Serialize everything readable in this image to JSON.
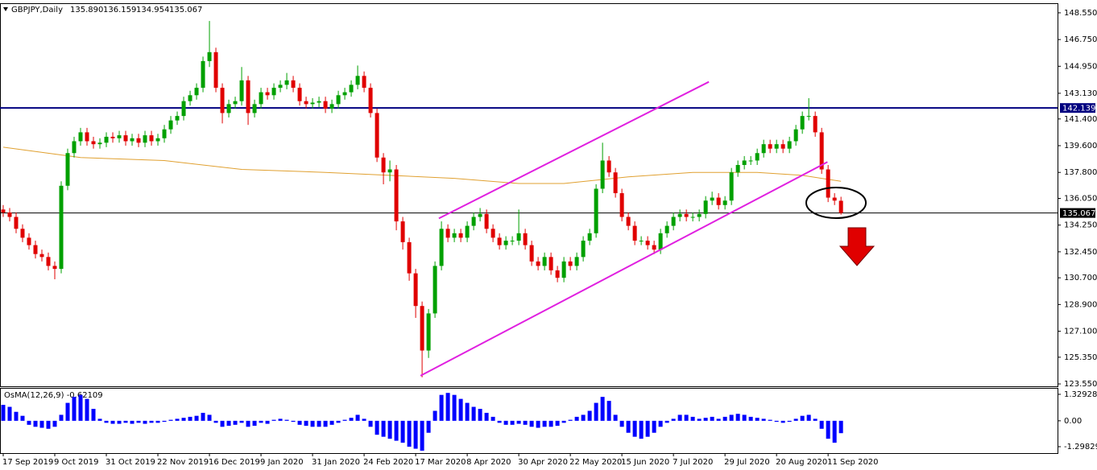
{
  "chart_data": [
    {
      "type": "candlestick",
      "title": "GBPJPY,Daily",
      "header_values": [
        "135.890",
        "136.159",
        "134.954",
        "135.067"
      ],
      "open": [
        135.3,
        135.1,
        134.8,
        134.0,
        133.4,
        132.9,
        132.3,
        132.1,
        131.5,
        131.3,
        136.9,
        139.1,
        139.9,
        140.5,
        139.9,
        139.7,
        139.8,
        140.2,
        140.1,
        140.3,
        139.9,
        140.1,
        139.8,
        140.3,
        139.9,
        140.1,
        140.7,
        141.3,
        141.6,
        142.6,
        143.0,
        143.5,
        145.3,
        145.9,
        143.5,
        141.8,
        142.4,
        142.6,
        144.0,
        141.8,
        142.4,
        143.2,
        143.0,
        143.5,
        143.7,
        144.0,
        143.5,
        142.6,
        142.4,
        142.5,
        142.6,
        142.1,
        142.4,
        143.0,
        143.2,
        143.7,
        144.3,
        143.5,
        141.8,
        138.8,
        137.8,
        138.0,
        134.5,
        133.1,
        131.0,
        128.8,
        125.8,
        128.3,
        131.5,
        134.0,
        133.4,
        133.7,
        133.4,
        134.2,
        134.8,
        135.0,
        134.0,
        133.4,
        132.9,
        133.2,
        133.2,
        133.7,
        132.9,
        131.8,
        131.5,
        132.1,
        131.2,
        130.7,
        131.8,
        131.5,
        132.1,
        133.2,
        133.7,
        136.7,
        138.6,
        137.8,
        136.4,
        134.8,
        134.2,
        133.2,
        133.2,
        132.9,
        132.6,
        133.7,
        134.2,
        134.8,
        135.0,
        134.8,
        134.8,
        135.0,
        135.9,
        136.1,
        135.6,
        135.9,
        137.8,
        138.3,
        138.6,
        138.6,
        139.1,
        139.7,
        139.4,
        139.7,
        139.4,
        139.9,
        140.7,
        141.6,
        141.6,
        140.5,
        138.0,
        136.1,
        135.89
      ],
      "high": [
        135.6,
        135.4,
        135.1,
        134.3,
        133.7,
        133.2,
        132.6,
        132.4,
        131.8,
        137.2,
        139.4,
        140.2,
        140.8,
        140.8,
        140.2,
        140.1,
        140.5,
        140.5,
        140.6,
        140.6,
        140.4,
        140.4,
        140.6,
        140.6,
        140.4,
        141.0,
        141.6,
        141.9,
        142.9,
        143.3,
        143.8,
        145.6,
        148.0,
        146.2,
        143.8,
        142.7,
        142.9,
        144.9,
        144.3,
        142.7,
        143.5,
        143.5,
        143.8,
        144.0,
        144.5,
        144.3,
        143.8,
        142.9,
        142.8,
        142.9,
        142.9,
        142.7,
        143.3,
        143.5,
        144.0,
        145.0,
        144.6,
        143.8,
        142.1,
        139.1,
        138.6,
        138.3,
        134.8,
        133.4,
        131.3,
        129.1,
        128.6,
        131.8,
        134.5,
        134.3,
        134.0,
        134.0,
        134.5,
        135.1,
        135.4,
        135.3,
        134.3,
        133.7,
        133.5,
        133.5,
        135.3,
        134.0,
        133.2,
        132.1,
        132.4,
        132.4,
        131.5,
        132.1,
        132.1,
        132.4,
        133.5,
        134.0,
        137.0,
        139.8,
        138.9,
        138.1,
        136.7,
        135.1,
        134.5,
        133.5,
        133.5,
        133.2,
        134.0,
        134.5,
        135.1,
        135.3,
        135.3,
        135.1,
        135.3,
        136.2,
        136.5,
        136.4,
        136.2,
        138.1,
        138.6,
        138.9,
        138.9,
        139.4,
        140.0,
        140.0,
        140.0,
        140.0,
        140.2,
        141.0,
        141.9,
        142.8,
        141.9,
        140.8,
        138.3,
        136.4,
        136.159
      ],
      "low": [
        134.8,
        134.5,
        133.7,
        133.1,
        132.6,
        132.0,
        131.8,
        131.2,
        130.6,
        131.0,
        136.6,
        138.8,
        139.6,
        139.6,
        139.4,
        139.4,
        139.5,
        139.8,
        139.8,
        139.6,
        139.6,
        139.5,
        139.5,
        139.6,
        139.6,
        139.8,
        140.4,
        141.0,
        141.3,
        142.3,
        142.7,
        143.2,
        144.9,
        143.2,
        141.1,
        141.5,
        142.1,
        142.3,
        141.0,
        141.5,
        142.1,
        142.7,
        142.7,
        143.2,
        143.4,
        143.2,
        142.3,
        142.1,
        142.1,
        142.2,
        141.8,
        141.8,
        142.1,
        142.7,
        142.9,
        143.4,
        143.2,
        141.5,
        138.5,
        137.0,
        137.2,
        133.9,
        132.6,
        130.5,
        128.0,
        124.0,
        125.3,
        128.0,
        131.2,
        133.1,
        133.1,
        133.1,
        133.1,
        133.9,
        134.5,
        133.7,
        133.1,
        132.6,
        132.6,
        132.9,
        132.9,
        132.6,
        131.5,
        131.2,
        131.2,
        130.9,
        130.4,
        130.4,
        131.2,
        131.2,
        131.8,
        132.9,
        133.4,
        136.4,
        137.5,
        136.1,
        134.5,
        133.9,
        132.9,
        132.9,
        132.6,
        132.3,
        132.3,
        133.4,
        133.9,
        134.5,
        134.5,
        134.5,
        134.5,
        134.7,
        135.6,
        135.3,
        135.3,
        135.6,
        137.5,
        138.0,
        138.3,
        138.3,
        138.8,
        139.1,
        139.1,
        139.1,
        139.1,
        139.6,
        140.4,
        141.3,
        140.2,
        137.7,
        135.8,
        135.6,
        134.954
      ],
      "close": [
        135.1,
        134.8,
        134.0,
        133.4,
        132.9,
        132.3,
        132.1,
        131.5,
        131.3,
        136.9,
        139.1,
        139.9,
        140.5,
        139.9,
        139.7,
        139.8,
        140.2,
        140.1,
        140.3,
        139.9,
        140.1,
        139.8,
        140.3,
        139.9,
        140.1,
        140.7,
        141.3,
        141.6,
        142.6,
        143.0,
        143.5,
        145.3,
        145.9,
        143.5,
        141.8,
        142.4,
        142.6,
        144.0,
        141.8,
        142.4,
        143.2,
        143.0,
        143.5,
        143.7,
        144.0,
        143.5,
        142.6,
        142.4,
        142.5,
        142.6,
        142.1,
        142.4,
        143.0,
        143.2,
        143.7,
        144.3,
        143.5,
        141.8,
        138.8,
        137.8,
        138.0,
        134.5,
        133.1,
        131.0,
        128.8,
        125.8,
        128.3,
        131.5,
        134.0,
        133.4,
        133.7,
        133.4,
        134.2,
        134.8,
        135.0,
        134.0,
        133.4,
        132.9,
        133.2,
        133.2,
        133.7,
        132.9,
        131.8,
        131.5,
        132.1,
        131.2,
        130.7,
        131.8,
        131.5,
        132.1,
        133.2,
        133.7,
        136.7,
        138.6,
        137.8,
        136.4,
        134.8,
        134.2,
        133.2,
        133.2,
        132.9,
        132.6,
        133.7,
        134.2,
        134.8,
        135.0,
        134.8,
        134.8,
        135.0,
        135.9,
        136.1,
        135.6,
        135.9,
        137.8,
        138.3,
        138.6,
        138.6,
        139.1,
        139.7,
        139.4,
        139.7,
        139.4,
        139.9,
        140.7,
        141.6,
        141.6,
        140.5,
        138.0,
        136.1,
        135.9,
        135.067
      ],
      "up_color": "#00a000",
      "down_color": "#e00000",
      "xlim": [
        -0.5,
        163.6
      ],
      "ylim": [
        123.39,
        148.98
      ],
      "yticks": [
        {
          "value": 148.55,
          "label": "148.550"
        },
        {
          "value": 146.75,
          "label": "146.750"
        },
        {
          "value": 144.95,
          "label": "144.950"
        },
        {
          "value": 143.13,
          "label": "143.130"
        },
        {
          "value": 141.4,
          "label": "141.400"
        },
        {
          "value": 139.6,
          "label": "139.600"
        },
        {
          "value": 137.8,
          "label": "137.800"
        },
        {
          "value": 136.05,
          "label": "136.050"
        },
        {
          "value": 134.25,
          "label": "134.250"
        },
        {
          "value": 132.45,
          "label": "132.450"
        },
        {
          "value": 130.7,
          "label": "130.700"
        },
        {
          "value": 128.9,
          "label": "128.900"
        },
        {
          "value": 127.1,
          "label": "127.100"
        },
        {
          "value": 125.35,
          "label": "125.350"
        },
        {
          "value": 123.55,
          "label": "123.550"
        }
      ],
      "xticks": [
        {
          "value": 0,
          "label": "17 Sep 2019"
        },
        {
          "value": 8,
          "label": "9 Oct 2019"
        },
        {
          "value": 16,
          "label": "31 Oct 2019"
        },
        {
          "value": 24,
          "label": "22 Nov 2019"
        },
        {
          "value": 32,
          "label": "16 Dec 2019"
        },
        {
          "value": 40,
          "label": "9 Jan 2020"
        },
        {
          "value": 48,
          "label": "31 Jan 2020"
        },
        {
          "value": 56,
          "label": "24 Feb 2020"
        },
        {
          "value": 64,
          "label": "17 Mar 2020"
        },
        {
          "value": 72,
          "label": "8 Apr 2020"
        },
        {
          "value": 80,
          "label": "30 Apr 2020"
        },
        {
          "value": 88,
          "label": "22 May 2020"
        },
        {
          "value": 96,
          "label": "15 Jun 2020"
        },
        {
          "value": 104,
          "label": "7 Jul 2020"
        },
        {
          "value": 112,
          "label": "29 Jul 2020"
        },
        {
          "value": 120,
          "label": "20 Aug 2020"
        },
        {
          "value": 128,
          "label": "11 Sep 2020"
        }
      ],
      "moving_average": {
        "color": "#e0a030",
        "x": [
          0,
          12,
          25,
          37,
          50,
          60,
          70,
          80,
          87,
          97,
          107,
          117,
          124,
          130
        ],
        "values": [
          139.5,
          138.8,
          138.6,
          138.0,
          137.8,
          137.6,
          137.4,
          137.05,
          137.05,
          137.5,
          137.8,
          137.8,
          137.6,
          137.2
        ]
      },
      "trendlines": [
        {
          "color": "#e020e0",
          "x": [
            64.75,
            127.9
          ],
          "y": [
            124.1,
            138.5
          ]
        },
        {
          "color": "#e020e0",
          "x": [
            67.6,
            109.5
          ],
          "y": [
            134.7,
            143.9
          ]
        }
      ],
      "hlines": [
        {
          "value": 142.139,
          "color": "#000080"
        },
        {
          "value": 135.067,
          "color": "#000000"
        }
      ]
    },
    {
      "type": "bar",
      "title": "OsMA(12,26,9) -0.62109",
      "color": "#0000ff",
      "values": [
        0.8,
        0.7,
        0.45,
        0.25,
        -0.2,
        -0.3,
        -0.35,
        -0.4,
        -0.3,
        0.3,
        0.9,
        1.2,
        1.3,
        1.1,
        0.6,
        0.1,
        -0.1,
        -0.15,
        -0.15,
        -0.1,
        -0.15,
        -0.1,
        -0.15,
        -0.1,
        -0.1,
        -0.05,
        0.05,
        0.1,
        0.15,
        0.2,
        0.25,
        0.4,
        0.3,
        -0.1,
        -0.3,
        -0.25,
        -0.2,
        -0.1,
        -0.3,
        -0.25,
        -0.1,
        -0.15,
        0.05,
        0.1,
        0.05,
        -0.05,
        -0.2,
        -0.25,
        -0.3,
        -0.3,
        -0.3,
        -0.2,
        -0.1,
        0.05,
        0.15,
        0.3,
        0.1,
        -0.3,
        -0.7,
        -0.8,
        -0.9,
        -1.0,
        -1.1,
        -1.3,
        -1.4,
        -1.5,
        -0.6,
        0.5,
        1.3,
        1.4,
        1.3,
        1.1,
        0.9,
        0.7,
        0.6,
        0.4,
        0.2,
        -0.1,
        -0.2,
        -0.2,
        -0.15,
        -0.2,
        -0.3,
        -0.35,
        -0.3,
        -0.3,
        -0.25,
        -0.1,
        0.05,
        0.2,
        0.3,
        0.5,
        0.9,
        1.2,
        1.0,
        0.3,
        -0.3,
        -0.6,
        -0.8,
        -0.9,
        -0.8,
        -0.6,
        -0.3,
        -0.1,
        0.1,
        0.3,
        0.3,
        0.2,
        0.1,
        0.15,
        0.2,
        0.1,
        0.2,
        0.3,
        0.35,
        0.3,
        0.2,
        0.15,
        0.1,
        0.05,
        -0.05,
        -0.1,
        -0.05,
        0.1,
        0.25,
        0.3,
        0.1,
        -0.4,
        -0.9,
        -1.1,
        -0.62
      ],
      "xlim": [
        -0.5,
        163.6
      ],
      "ylim": [
        -1.58,
        1.61
      ],
      "yticks": [
        1.32928,
        {
          "value": 0,
          "label": "0.00"
        },
        -1.29829
      ]
    }
  ]
}
